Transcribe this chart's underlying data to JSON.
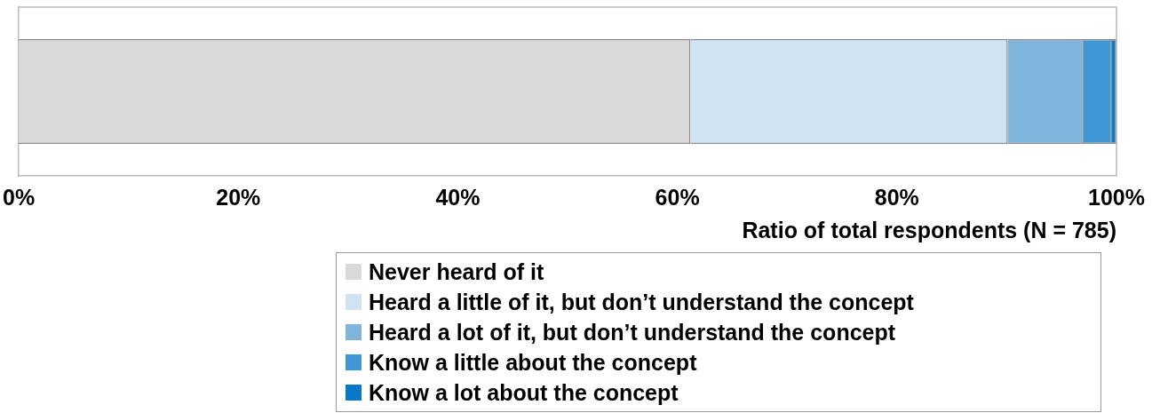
{
  "chart_data": {
    "type": "bar",
    "orientation": "horizontal",
    "stacked": true,
    "categories": [
      null
    ],
    "series": [
      {
        "name": "Never heard of it",
        "color": "#d9d9d9",
        "values": [
          61.2
        ]
      },
      {
        "name": "Heard a little of it, but don’t understand the concept",
        "color": "#cfe3f2",
        "values": [
          28.9
        ]
      },
      {
        "name": "Heard a lot of it, but don’t understand the concept",
        "color": "#7fb4dd",
        "values": [
          6.9
        ]
      },
      {
        "name": "Know a little about the concept",
        "color": "#3f97d6",
        "values": [
          2.6
        ]
      },
      {
        "name": "Know a lot about the concept",
        "color": "#0a78c8",
        "values": [
          0.4
        ]
      }
    ],
    "xlabel": "Ratio of total respondents (N = 785)",
    "xlim": [
      0,
      100
    ],
    "xticks": [
      {
        "value": 0,
        "label": "0%"
      },
      {
        "value": 20,
        "label": "20%"
      },
      {
        "value": 40,
        "label": "40%"
      },
      {
        "value": 60,
        "label": "60%"
      },
      {
        "value": 80,
        "label": "80%"
      },
      {
        "value": 100,
        "label": "100%"
      }
    ],
    "grid": false,
    "legend": "bottom"
  }
}
